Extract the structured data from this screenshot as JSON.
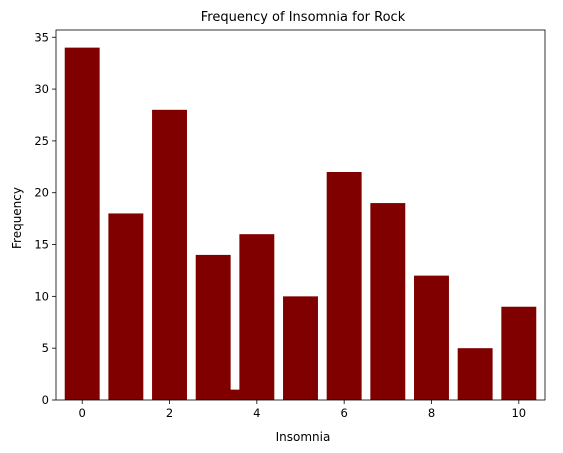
{
  "chart_data": {
    "type": "bar",
    "title": "Frequency of Insomnia for Rock",
    "xlabel": "Insomnia",
    "ylabel": "Frequency",
    "bars": [
      {
        "x": 0,
        "value": 34
      },
      {
        "x": 1,
        "value": 18
      },
      {
        "x": 2,
        "value": 28
      },
      {
        "x": 3,
        "value": 14
      },
      {
        "x": 3.5,
        "value": 1
      },
      {
        "x": 4,
        "value": 16
      },
      {
        "x": 5,
        "value": 10
      },
      {
        "x": 6,
        "value": 22
      },
      {
        "x": 7,
        "value": 19
      },
      {
        "x": 8,
        "value": 12
      },
      {
        "x": 9,
        "value": 5
      },
      {
        "x": 10,
        "value": 9
      }
    ],
    "bar_width": 0.8,
    "xlim": [
      -0.6,
      10.6
    ],
    "ylim": [
      0,
      35.7
    ],
    "xticks": [
      0,
      2,
      4,
      6,
      8,
      10
    ],
    "yticks": [
      0,
      5,
      10,
      15,
      20,
      25,
      30,
      35
    ],
    "grid": false,
    "legend": "none",
    "bar_color": "#800000"
  }
}
